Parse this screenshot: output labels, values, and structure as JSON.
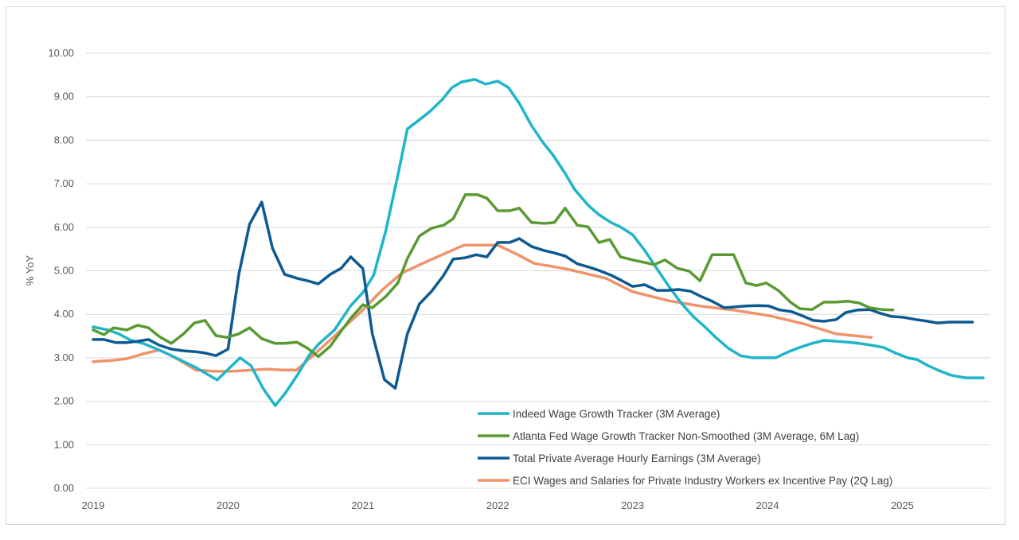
{
  "chart_data": {
    "type": "line",
    "title": "",
    "xlabel": "",
    "ylabel": "% YoY",
    "xlim": [
      2019,
      2025.75
    ],
    "ylim": [
      0,
      10
    ],
    "x_ticks": [
      "2019",
      "2020",
      "2021",
      "2022",
      "2023",
      "2024",
      "2025"
    ],
    "y_ticks": [
      "0.00",
      "1.00",
      "2.00",
      "3.00",
      "4.00",
      "5.00",
      "6.00",
      "7.00",
      "8.00",
      "9.00",
      "10.00"
    ],
    "grid": "horizontal",
    "legend_position": "bottom-right",
    "series": [
      {
        "name": "Indeed Wage Growth Tracker (3M Average)",
        "color": "#1fb5c9",
        "x": [
          2019.0,
          2019.11,
          2019.19,
          2019.28,
          2019.37,
          2019.49,
          2019.58,
          2019.76,
          2019.92,
          2020.09,
          2020.17,
          2020.26,
          2020.35,
          2020.43,
          2020.52,
          2020.6,
          2020.67,
          2020.79,
          2020.91,
          2021.0,
          2021.08,
          2021.17,
          2021.26,
          2021.33,
          2021.41,
          2021.5,
          2021.59,
          2021.66,
          2021.73,
          2021.83,
          2021.91,
          2022.0,
          2022.08,
          2022.16,
          2022.25,
          2022.34,
          2022.41,
          2022.5,
          2022.57,
          2022.67,
          2022.75,
          2022.84,
          2022.91,
          2023.0,
          2023.09,
          2023.18,
          2023.27,
          2023.36,
          2023.45,
          2023.53,
          2023.62,
          2023.71,
          2023.8,
          2023.89,
          2023.98,
          2024.06,
          2024.15,
          2024.24,
          2024.33,
          2024.42,
          2024.51,
          2024.6,
          2024.68,
          2024.77,
          2024.86,
          2024.95,
          2025.04,
          2025.11,
          2025.19,
          2025.27,
          2025.36,
          2025.47,
          2025.6
        ],
        "y": [
          3.71,
          3.64,
          3.55,
          3.4,
          3.33,
          3.18,
          3.05,
          2.78,
          2.49,
          3.0,
          2.82,
          2.3,
          1.9,
          2.21,
          2.63,
          3.05,
          3.31,
          3.64,
          4.2,
          4.5,
          4.9,
          5.92,
          7.2,
          8.26,
          8.45,
          8.67,
          8.94,
          9.21,
          9.34,
          9.4,
          9.29,
          9.36,
          9.21,
          8.85,
          8.34,
          7.93,
          7.66,
          7.24,
          6.87,
          6.51,
          6.29,
          6.11,
          6.01,
          5.83,
          5.47,
          5.05,
          4.64,
          4.26,
          3.95,
          3.73,
          3.46,
          3.22,
          3.05,
          3.0,
          3.0,
          3.0,
          3.13,
          3.24,
          3.33,
          3.4,
          3.38,
          3.36,
          3.33,
          3.29,
          3.24,
          3.11,
          3.0,
          2.96,
          2.82,
          2.71,
          2.6,
          2.54,
          2.54
        ]
      },
      {
        "name": "Atlanta Fed Wage Growth Tracker Non-Smoothed (3M Average, 6M Lag)",
        "color": "#5a9a32",
        "x": [
          2019.0,
          2019.08,
          2019.15,
          2019.25,
          2019.33,
          2019.41,
          2019.49,
          2019.58,
          2019.67,
          2019.75,
          2019.83,
          2019.91,
          2019.99,
          2020.08,
          2020.16,
          2020.25,
          2020.35,
          2020.42,
          2020.51,
          2020.59,
          2020.67,
          2020.76,
          2020.84,
          2020.91,
          2021.0,
          2021.07,
          2021.17,
          2021.26,
          2021.33,
          2021.42,
          2021.51,
          2021.6,
          2021.67,
          2021.76,
          2021.85,
          2021.92,
          2022.0,
          2022.09,
          2022.16,
          2022.25,
          2022.35,
          2022.42,
          2022.5,
          2022.59,
          2022.67,
          2022.75,
          2022.83,
          2022.91,
          2023.0,
          2023.09,
          2023.16,
          2023.24,
          2023.33,
          2023.42,
          2023.5,
          2023.59,
          2023.67,
          2023.75,
          2023.84,
          2023.92,
          2023.99,
          2024.08,
          2024.17,
          2024.24,
          2024.33,
          2024.42,
          2024.5,
          2024.6,
          2024.68,
          2024.76,
          2024.85,
          2024.93
        ],
        "y": [
          3.64,
          3.53,
          3.69,
          3.64,
          3.75,
          3.69,
          3.49,
          3.33,
          3.55,
          3.8,
          3.86,
          3.51,
          3.47,
          3.55,
          3.69,
          3.44,
          3.33,
          3.33,
          3.36,
          3.22,
          3.03,
          3.27,
          3.62,
          3.91,
          4.22,
          4.15,
          4.41,
          4.72,
          5.28,
          5.8,
          5.98,
          6.05,
          6.2,
          6.75,
          6.75,
          6.67,
          6.38,
          6.38,
          6.44,
          6.11,
          6.09,
          6.11,
          6.44,
          6.05,
          6.01,
          5.65,
          5.72,
          5.32,
          5.25,
          5.19,
          5.14,
          5.25,
          5.06,
          4.99,
          4.77,
          5.37,
          5.37,
          5.37,
          4.72,
          4.66,
          4.72,
          4.55,
          4.28,
          4.13,
          4.11,
          4.28,
          4.28,
          4.3,
          4.26,
          4.15,
          4.11,
          4.1
        ]
      },
      {
        "name": "Total Private Average Hourly Earnings (3M Average)",
        "color": "#0d5a91",
        "x": [
          2019.0,
          2019.08,
          2019.17,
          2019.25,
          2019.33,
          2019.41,
          2019.49,
          2019.58,
          2019.67,
          2019.76,
          2019.83,
          2019.91,
          2020.0,
          2020.08,
          2020.16,
          2020.25,
          2020.33,
          2020.42,
          2020.51,
          2020.59,
          2020.67,
          2020.76,
          2020.84,
          2020.91,
          2021.0,
          2021.07,
          2021.16,
          2021.24,
          2021.33,
          2021.42,
          2021.51,
          2021.6,
          2021.67,
          2021.76,
          2021.84,
          2021.92,
          2022.0,
          2022.09,
          2022.16,
          2022.25,
          2022.34,
          2022.42,
          2022.5,
          2022.59,
          2022.68,
          2022.75,
          2022.84,
          2022.91,
          2023.0,
          2023.09,
          2023.18,
          2023.26,
          2023.34,
          2023.43,
          2023.5,
          2023.59,
          2023.68,
          2023.76,
          2023.84,
          2023.93,
          2024.01,
          2024.09,
          2024.18,
          2024.27,
          2024.34,
          2024.42,
          2024.51,
          2024.58,
          2024.67,
          2024.76,
          2024.84,
          2024.92,
          2025.01,
          2025.1,
          2025.19,
          2025.26,
          2025.35,
          2025.42,
          2025.52
        ],
        "y": [
          3.42,
          3.42,
          3.35,
          3.35,
          3.38,
          3.42,
          3.29,
          3.2,
          3.16,
          3.14,
          3.11,
          3.05,
          3.2,
          4.92,
          6.07,
          6.58,
          5.52,
          4.92,
          4.83,
          4.77,
          4.7,
          4.92,
          5.06,
          5.32,
          5.05,
          3.55,
          2.5,
          2.3,
          3.55,
          4.24,
          4.53,
          4.9,
          5.27,
          5.3,
          5.37,
          5.32,
          5.65,
          5.65,
          5.74,
          5.56,
          5.47,
          5.41,
          5.34,
          5.16,
          5.08,
          5.01,
          4.9,
          4.79,
          4.64,
          4.68,
          4.55,
          4.55,
          4.57,
          4.53,
          4.42,
          4.3,
          4.15,
          4.17,
          4.19,
          4.2,
          4.19,
          4.1,
          4.06,
          3.95,
          3.86,
          3.84,
          3.88,
          4.04,
          4.1,
          4.11,
          4.02,
          3.95,
          3.93,
          3.88,
          3.84,
          3.8,
          3.82,
          3.82,
          3.82
        ]
      },
      {
        "name": "ECI Wages and Salaries for Private Industry Workers ex Incentive Pay (2Q Lag)",
        "color": "#f0936a",
        "x": [
          2019.0,
          2019.14,
          2019.25,
          2019.37,
          2019.49,
          2019.58,
          2019.67,
          2019.76,
          2019.9,
          2020.02,
          2020.14,
          2020.29,
          2020.4,
          2020.51,
          2020.61,
          2020.73,
          2020.85,
          2021.0,
          2021.14,
          2021.29,
          2021.5,
          2021.75,
          2022.0,
          2022.15,
          2022.27,
          2022.5,
          2022.8,
          2023.0,
          2023.27,
          2023.5,
          2023.74,
          2024.01,
          2024.27,
          2024.51,
          2024.77
        ],
        "y": [
          2.91,
          2.94,
          2.98,
          3.09,
          3.18,
          3.05,
          2.89,
          2.72,
          2.69,
          2.69,
          2.71,
          2.74,
          2.72,
          2.72,
          3.0,
          3.33,
          3.67,
          4.1,
          4.55,
          4.95,
          5.25,
          5.59,
          5.59,
          5.37,
          5.17,
          5.05,
          4.83,
          4.52,
          4.31,
          4.19,
          4.1,
          3.97,
          3.78,
          3.55,
          3.47
        ]
      }
    ]
  }
}
